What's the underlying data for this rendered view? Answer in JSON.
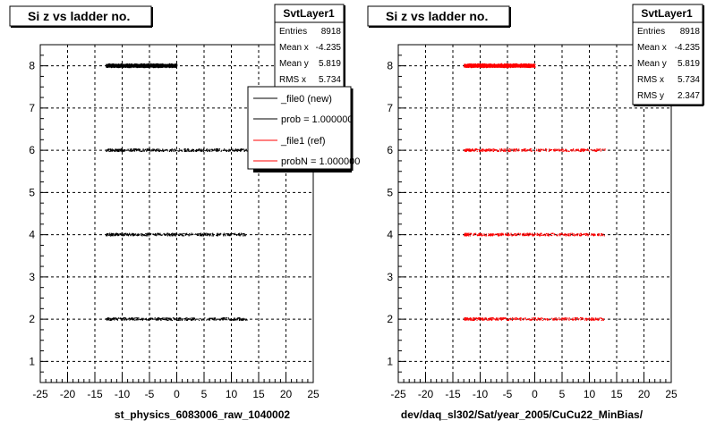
{
  "colors": {
    "new": "#000000",
    "ref": "#ff0000",
    "frame": "#000000",
    "legend_bg": "#ffffff"
  },
  "footer_text": "",
  "chart_data": [
    {
      "type": "scatter",
      "title": "Si z vs ladder no.",
      "xlabel": "st_physics_6083006_raw_1040002",
      "ylabel": "",
      "xlim": [
        -25,
        25
      ],
      "ylim": [
        0.5,
        8.5
      ],
      "x_ticks": [
        -25,
        -20,
        -15,
        -10,
        -5,
        0,
        5,
        10,
        15,
        20,
        25
      ],
      "y_ticks": [
        1,
        2,
        3,
        4,
        5,
        6,
        7,
        8
      ],
      "grid": true,
      "stats": {
        "name": "SvtLayer1",
        "rows": [
          {
            "label": "Entries",
            "value": "8918"
          },
          {
            "label": "Mean x",
            "value": "-4.235"
          },
          {
            "label": "Mean y",
            "value": "5.819"
          },
          {
            "label": "RMS x",
            "value": "5.734"
          }
        ]
      },
      "legend": [
        {
          "label": "_file0 (new)",
          "color": "#000000"
        },
        {
          "label": "prob = 1.000000",
          "color": "#000000"
        },
        {
          "label": "_file1 (ref)",
          "color": "#ff0000"
        },
        {
          "label": "probN = 1.000000",
          "color": "#ff0000"
        }
      ],
      "legend_position": "top-right",
      "series": [
        {
          "name": "_file0 (new)",
          "color": "#000000",
          "bands": [
            {
              "y": 8,
              "x_min": -13.0,
              "x_max": 0.0,
              "density": "high"
            },
            {
              "y": 6,
              "x_min": -13.0,
              "x_max": 12.8,
              "density": "medium"
            },
            {
              "y": 4,
              "x_min": -13.0,
              "x_max": 12.8,
              "density": "medium"
            },
            {
              "y": 2,
              "x_min": -13.0,
              "x_max": 12.8,
              "density": "medium"
            }
          ]
        }
      ]
    },
    {
      "type": "scatter",
      "title": "Si z vs ladder no.",
      "xlabel": "dev/daq_sl302/Sat/year_2005/CuCu22_MinBias/",
      "ylabel": "",
      "xlim": [
        -25,
        25
      ],
      "ylim": [
        0.5,
        8.5
      ],
      "x_ticks": [
        -25,
        -20,
        -15,
        -10,
        -5,
        0,
        5,
        10,
        15,
        20,
        25
      ],
      "y_ticks": [
        1,
        2,
        3,
        4,
        5,
        6,
        7,
        8
      ],
      "grid": true,
      "stats": {
        "name": "SvtLayer1",
        "rows": [
          {
            "label": "Entries",
            "value": "8918"
          },
          {
            "label": "Mean x",
            "value": "-4.235"
          },
          {
            "label": "Mean y",
            "value": "5.819"
          },
          {
            "label": "RMS x",
            "value": "5.734"
          },
          {
            "label": "RMS y",
            "value": "2.347"
          }
        ]
      },
      "legend": [],
      "series": [
        {
          "name": "_file1 (ref)",
          "color": "#ff0000",
          "bands": [
            {
              "y": 8,
              "x_min": -13.0,
              "x_max": 0.0,
              "density": "high"
            },
            {
              "y": 6,
              "x_min": -13.0,
              "x_max": 12.8,
              "density": "medium"
            },
            {
              "y": 4,
              "x_min": -13.0,
              "x_max": 12.8,
              "density": "medium"
            },
            {
              "y": 2,
              "x_min": -13.0,
              "x_max": 12.8,
              "density": "medium"
            }
          ]
        }
      ]
    }
  ]
}
